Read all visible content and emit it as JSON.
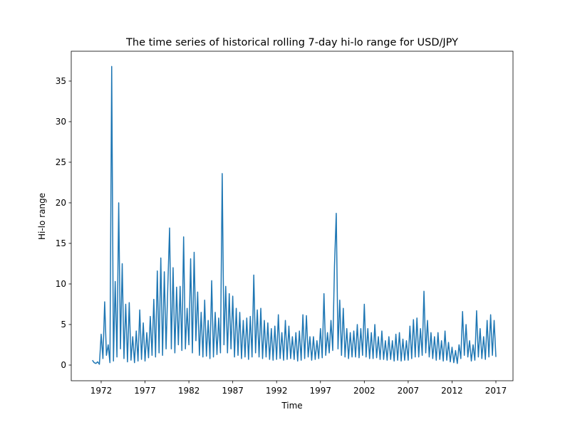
{
  "chart_data": {
    "type": "line",
    "title": "The time series of historical rolling 7-day hi-lo range for USD/JPY",
    "xlabel": "Time",
    "ylabel": "Hi-lo range",
    "color": "#1f77b4",
    "xlim": [
      1968.59,
      2018.95
    ],
    "ylim": [
      -1.93,
      38.68
    ],
    "xticks": [
      1972,
      1977,
      1982,
      1987,
      1992,
      1997,
      2002,
      2007,
      2012,
      2017
    ],
    "yticks": [
      0,
      5,
      10,
      15,
      20,
      25,
      30,
      35
    ],
    "x": [
      1971.0,
      1971.2,
      1971.4,
      1971.6,
      1971.8,
      1972.0,
      1972.2,
      1972.4,
      1972.6,
      1972.8,
      1973.0,
      1973.2,
      1973.4,
      1973.6,
      1973.8,
      1974.0,
      1974.2,
      1974.4,
      1974.6,
      1974.8,
      1975.0,
      1975.2,
      1975.4,
      1975.6,
      1975.8,
      1976.0,
      1976.2,
      1976.4,
      1976.6,
      1976.8,
      1977.0,
      1977.2,
      1977.4,
      1977.6,
      1977.8,
      1978.0,
      1978.2,
      1978.4,
      1978.6,
      1978.8,
      1979.0,
      1979.2,
      1979.4,
      1979.6,
      1979.8,
      1980.0,
      1980.2,
      1980.4,
      1980.6,
      1980.8,
      1981.0,
      1981.2,
      1981.4,
      1981.6,
      1981.8,
      1982.0,
      1982.2,
      1982.4,
      1982.6,
      1982.8,
      1983.0,
      1983.2,
      1983.4,
      1983.6,
      1983.8,
      1984.0,
      1984.2,
      1984.4,
      1984.6,
      1984.8,
      1985.0,
      1985.2,
      1985.4,
      1985.6,
      1985.8,
      1986.0,
      1986.2,
      1986.4,
      1986.6,
      1986.8,
      1987.0,
      1987.2,
      1987.4,
      1987.6,
      1987.8,
      1988.0,
      1988.2,
      1988.4,
      1988.6,
      1988.8,
      1989.0,
      1989.2,
      1989.4,
      1989.6,
      1989.8,
      1990.0,
      1990.2,
      1990.4,
      1990.6,
      1990.8,
      1991.0,
      1991.2,
      1991.4,
      1991.6,
      1991.8,
      1992.0,
      1992.2,
      1992.4,
      1992.6,
      1992.8,
      1993.0,
      1993.2,
      1993.4,
      1993.6,
      1993.8,
      1994.0,
      1994.2,
      1994.4,
      1994.6,
      1994.8,
      1995.0,
      1995.2,
      1995.4,
      1995.6,
      1995.8,
      1996.0,
      1996.2,
      1996.4,
      1996.6,
      1996.8,
      1997.0,
      1997.2,
      1997.4,
      1997.6,
      1997.8,
      1998.0,
      1998.2,
      1998.4,
      1998.6,
      1998.8,
      1999.0,
      1999.2,
      1999.4,
      1999.6,
      1999.8,
      2000.0,
      2000.2,
      2000.4,
      2000.6,
      2000.8,
      2001.0,
      2001.2,
      2001.4,
      2001.6,
      2001.8,
      2002.0,
      2002.2,
      2002.4,
      2002.6,
      2002.8,
      2003.0,
      2003.2,
      2003.4,
      2003.6,
      2003.8,
      2004.0,
      2004.2,
      2004.4,
      2004.6,
      2004.8,
      2005.0,
      2005.2,
      2005.4,
      2005.6,
      2005.8,
      2006.0,
      2006.2,
      2006.4,
      2006.6,
      2006.8,
      2007.0,
      2007.2,
      2007.4,
      2007.6,
      2007.8,
      2008.0,
      2008.2,
      2008.4,
      2008.6,
      2008.8,
      2009.0,
      2009.2,
      2009.4,
      2009.6,
      2009.8,
      2010.0,
      2010.2,
      2010.4,
      2010.6,
      2010.8,
      2011.0,
      2011.2,
      2011.4,
      2011.6,
      2011.8,
      2012.0,
      2012.2,
      2012.4,
      2012.6,
      2012.8,
      2013.0,
      2013.2,
      2013.4,
      2013.6,
      2013.8,
      2014.0,
      2014.2,
      2014.4,
      2014.6,
      2014.8,
      2015.0,
      2015.2,
      2015.4,
      2015.6,
      2015.8,
      2016.0,
      2016.2,
      2016.4,
      2016.6,
      2016.8,
      2017.0
    ],
    "values": [
      0.6,
      0.3,
      0.2,
      0.4,
      0.1,
      3.8,
      0.8,
      7.8,
      1.2,
      2.5,
      0.3,
      36.8,
      0.5,
      10.3,
      1.0,
      20.0,
      2.0,
      12.5,
      0.8,
      7.5,
      0.4,
      7.7,
      0.6,
      3.5,
      0.3,
      4.2,
      0.5,
      6.8,
      0.7,
      5.2,
      0.5,
      4.0,
      0.9,
      6.0,
      1.2,
      8.1,
      1.0,
      11.6,
      1.5,
      13.2,
      1.2,
      11.5,
      2.0,
      9.8,
      16.9,
      2.0,
      12.0,
      1.5,
      9.6,
      2.5,
      9.7,
      1.8,
      15.8,
      2.0,
      7.0,
      2.5,
      13.1,
      1.5,
      13.9,
      3.0,
      9.0,
      1.2,
      6.5,
      1.0,
      8.0,
      1.1,
      5.5,
      0.8,
      10.4,
      1.0,
      6.5,
      1.3,
      5.8,
      1.5,
      23.6,
      2.5,
      9.7,
      1.5,
      8.8,
      2.0,
      8.5,
      1.0,
      7.0,
      1.2,
      6.5,
      0.8,
      5.5,
      1.0,
      5.8,
      0.7,
      6.0,
      1.0,
      11.1,
      1.5,
      6.8,
      1.0,
      7.0,
      0.8,
      5.5,
      1.0,
      5.2,
      0.7,
      4.5,
      0.6,
      4.8,
      0.7,
      6.2,
      0.8,
      4.0,
      0.6,
      5.5,
      0.7,
      4.8,
      0.8,
      3.5,
      0.7,
      4.0,
      0.5,
      4.2,
      0.6,
      6.2,
      0.8,
      6.1,
      1.0,
      3.5,
      0.6,
      3.5,
      0.7,
      3.0,
      0.8,
      4.5,
      0.9,
      8.8,
      1.2,
      4.0,
      1.5,
      5.5,
      1.8,
      12.2,
      18.7,
      2.0,
      8.0,
      1.2,
      7.0,
      1.0,
      4.5,
      0.8,
      4.0,
      1.0,
      4.2,
      1.0,
      5.0,
      0.9,
      4.5,
      1.2,
      7.5,
      1.0,
      4.5,
      0.8,
      4.0,
      0.8,
      5.0,
      0.9,
      3.5,
      0.7,
      4.2,
      0.7,
      3.0,
      0.6,
      3.5,
      0.7,
      3.0,
      0.5,
      3.8,
      0.6,
      4.0,
      0.5,
      3.2,
      0.6,
      3.0,
      0.6,
      4.8,
      0.8,
      5.6,
      1.0,
      5.8,
      1.0,
      4.5,
      1.2,
      9.1,
      1.5,
      5.5,
      1.0,
      4.0,
      0.8,
      3.5,
      0.6,
      4.0,
      0.7,
      3.0,
      0.5,
      4.2,
      0.6,
      2.8,
      0.4,
      2.2,
      0.3,
      1.8,
      0.2,
      2.5,
      0.8,
      6.6,
      1.2,
      5.0,
      1.0,
      3.0,
      0.5,
      2.5,
      0.6,
      6.7,
      1.0,
      4.5,
      0.8,
      3.5,
      0.7,
      5.5,
      1.0,
      6.2,
      1.2,
      5.5,
      1.0
    ]
  }
}
